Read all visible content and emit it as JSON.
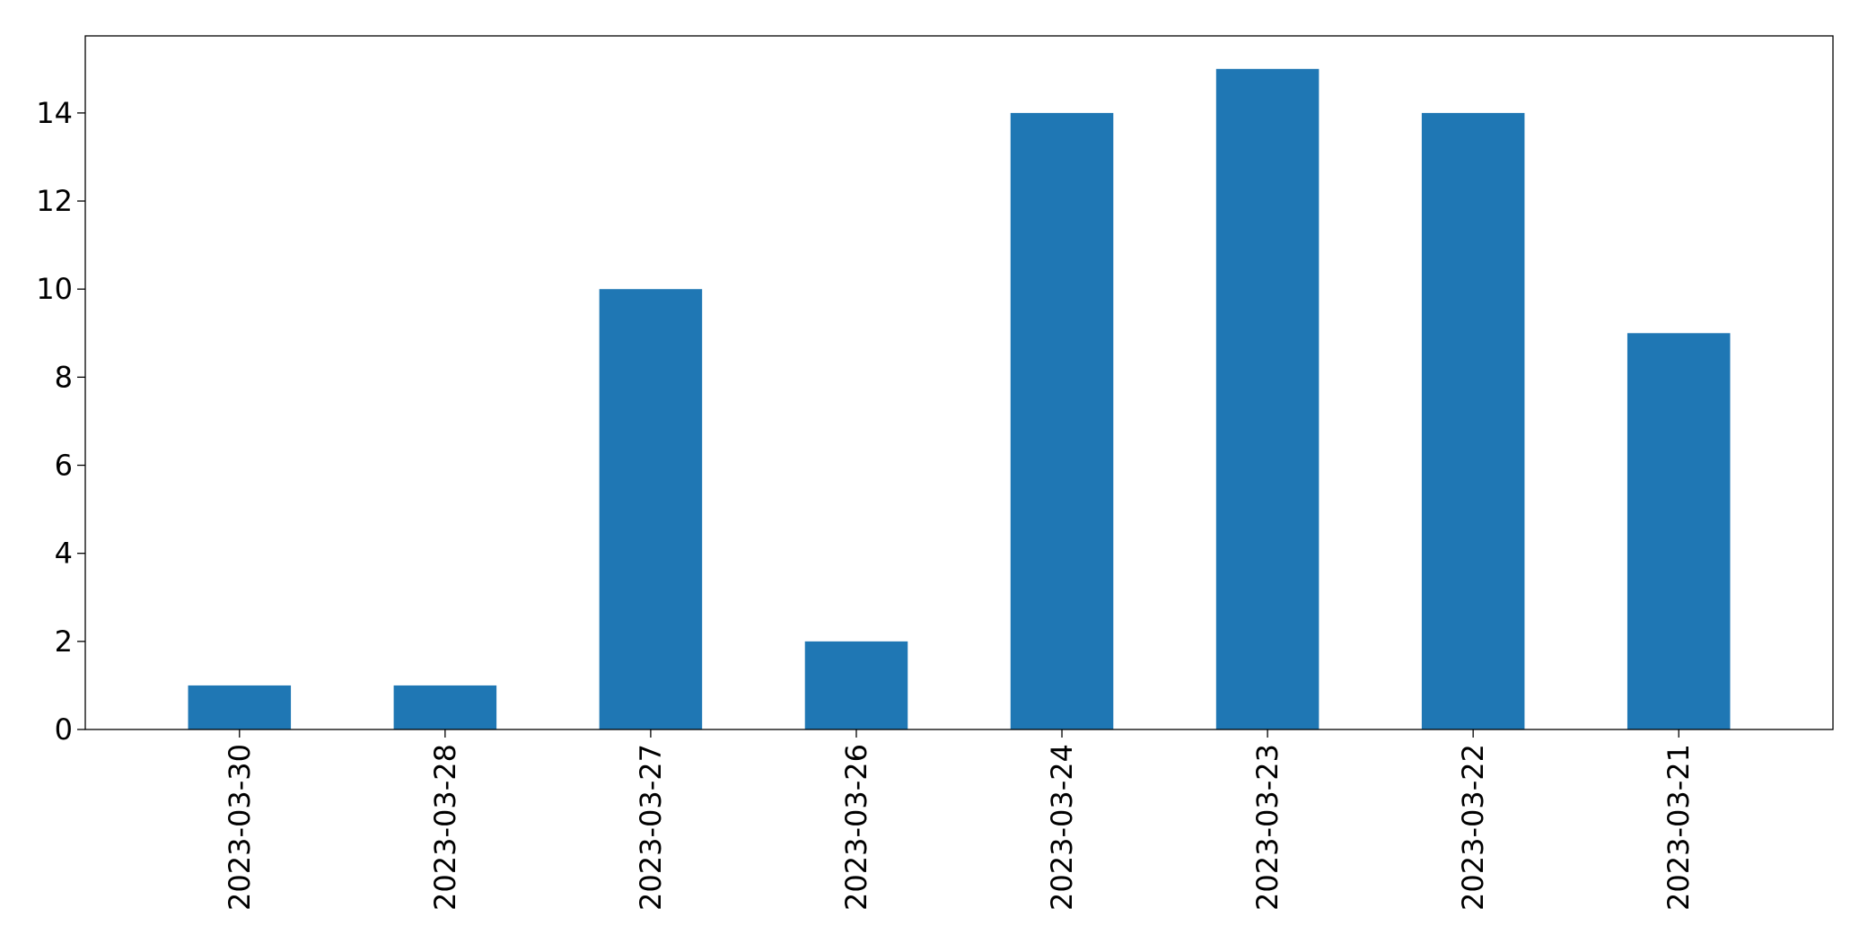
{
  "chart_data": {
    "type": "bar",
    "title": "",
    "xlabel": "",
    "ylabel": "",
    "categories": [
      "2023-03-30",
      "2023-03-28",
      "2023-03-27",
      "2023-03-26",
      "2023-03-24",
      "2023-03-23",
      "2023-03-22",
      "2023-03-21"
    ],
    "values": [
      1,
      1,
      10,
      2,
      14,
      15,
      14,
      9
    ],
    "ylim": [
      0,
      15.75
    ],
    "yticks": [
      0,
      2,
      4,
      6,
      8,
      10,
      12,
      14
    ],
    "grid": false,
    "legend": "none",
    "colors": {
      "bar": "#1f77b4",
      "axis": "#000000",
      "background": "#ffffff"
    }
  }
}
